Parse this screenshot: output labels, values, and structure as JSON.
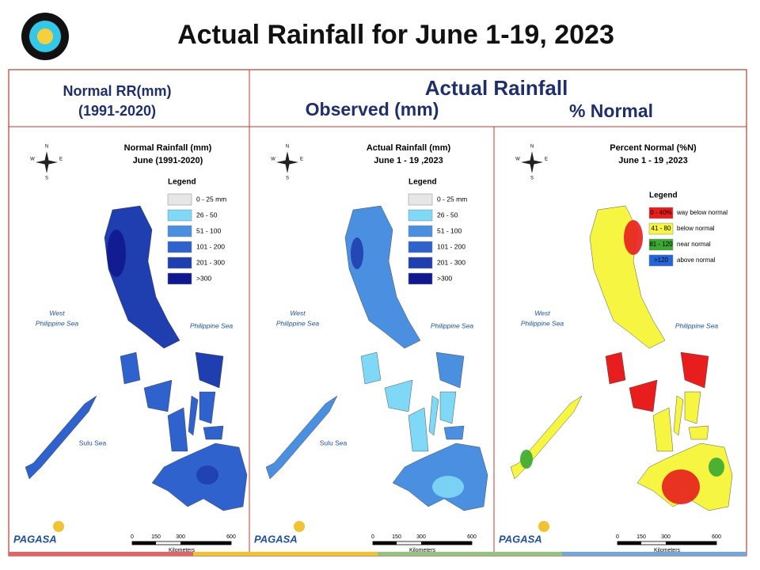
{
  "header": {
    "title": "Actual Rainfall for June 1-19, 2023"
  },
  "columns": {
    "normal": [
      "Normal RR(mm)",
      "(1991-2020)"
    ],
    "actual": "Actual Rainfall",
    "observed": "Observed (mm)",
    "percent": "% Normal"
  },
  "panels": [
    {
      "title": [
        "Normal Rainfall (mm)",
        "June (1991-2020)"
      ],
      "legend_title": "Legend",
      "legend": [
        {
          "range": "0 - 25 mm",
          "color": "#e6e6e6"
        },
        {
          "range": "26 - 50",
          "color": "#7fd8f5"
        },
        {
          "range": "51 - 100",
          "color": "#4a8fe0"
        },
        {
          "range": "101 - 200",
          "color": "#2f62cc"
        },
        {
          "range": "201 - 300",
          "color": "#1f3fb0"
        },
        {
          "range": ">300",
          "color": "#101890"
        }
      ],
      "seas": {
        "west": [
          "West",
          "Philippine Sea"
        ],
        "east": "Philippine Sea",
        "sulu": "Sulu Sea"
      },
      "scale": {
        "ticks": [
          0,
          150,
          300,
          600
        ],
        "unit": "Kilometers"
      },
      "compass": [
        "N",
        "E",
        "W",
        "S"
      ],
      "logo": "PAGASA"
    },
    {
      "title": [
        "Actual Rainfall (mm)",
        "June 1 - 19 ,2023"
      ],
      "legend_title": "Legend",
      "legend": [
        {
          "range": "0 - 25 mm",
          "color": "#e6e6e6"
        },
        {
          "range": "26 - 50",
          "color": "#7fd8f5"
        },
        {
          "range": "51 - 100",
          "color": "#4a8fe0"
        },
        {
          "range": "101 - 200",
          "color": "#2f62cc"
        },
        {
          "range": "201 - 300",
          "color": "#1f3fb0"
        },
        {
          "range": ">300",
          "color": "#101890"
        }
      ],
      "seas": {
        "west": [
          "West",
          "Philippine Sea"
        ],
        "east": "Philippine Sea",
        "sulu": "Sulu Sea"
      },
      "scale": {
        "ticks": [
          0,
          150,
          300,
          600
        ],
        "unit": "Kilometers"
      },
      "compass": [
        "N",
        "E",
        "W",
        "S"
      ],
      "logo": "PAGASA"
    },
    {
      "title": [
        "Percent Normal (%N)",
        "June 1 - 19 ,2023"
      ],
      "legend_title": "Legend",
      "legend": [
        {
          "range": "0 - 40%",
          "color": "#e81e1e",
          "description": "way below normal"
        },
        {
          "range": "41 - 80",
          "color": "#f5f542",
          "description": "below normal"
        },
        {
          "range": "81 - 120",
          "color": "#3aa832",
          "description": "near normal"
        },
        {
          "range": ">120",
          "color": "#2466d8",
          "description": "above normal"
        }
      ],
      "seas": {
        "west": [
          "West",
          "Philippine Sea"
        ],
        "east": "Philippine Sea"
      },
      "scale": {
        "ticks": [
          0,
          150,
          300,
          600
        ],
        "unit": "Kilometers"
      },
      "compass": [
        "N",
        "E",
        "W",
        "S"
      ],
      "logo": "PAGASA"
    }
  ]
}
